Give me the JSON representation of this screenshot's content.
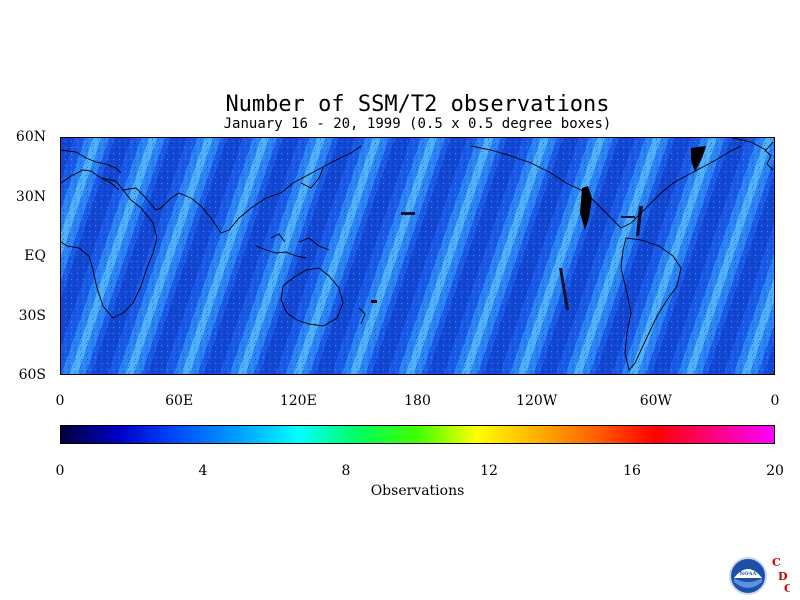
{
  "title": "Number of SSM/T2 observations",
  "subtitle": "January 16 - 20, 1999 (0.5 x 0.5 degree boxes)",
  "map": {
    "variable": "Number of SSM/T2 observations",
    "lat_labels": [
      "60N",
      "30N",
      "EQ",
      "30S",
      "60S"
    ],
    "lon_labels": [
      "0",
      "60E",
      "120E",
      "180",
      "120W",
      "60W",
      "0"
    ],
    "lat_range": [
      -60,
      60
    ],
    "lon_range": [
      0,
      360
    ]
  },
  "colorbar": {
    "title": "Observations",
    "min": 0,
    "max": 20,
    "tick_labels": [
      "0",
      "4",
      "8",
      "12",
      "16",
      "20"
    ],
    "colors": [
      "#000040",
      "#0000c8",
      "#0050ff",
      "#00a0ff",
      "#00ffff",
      "#00ff60",
      "#40ff00",
      "#ffff00",
      "#ffb000",
      "#ff6000",
      "#ff0000",
      "#ff0080",
      "#ff00ff"
    ]
  },
  "logo": {
    "agency": "NOAA",
    "letters": [
      "C",
      "D",
      "C"
    ]
  }
}
